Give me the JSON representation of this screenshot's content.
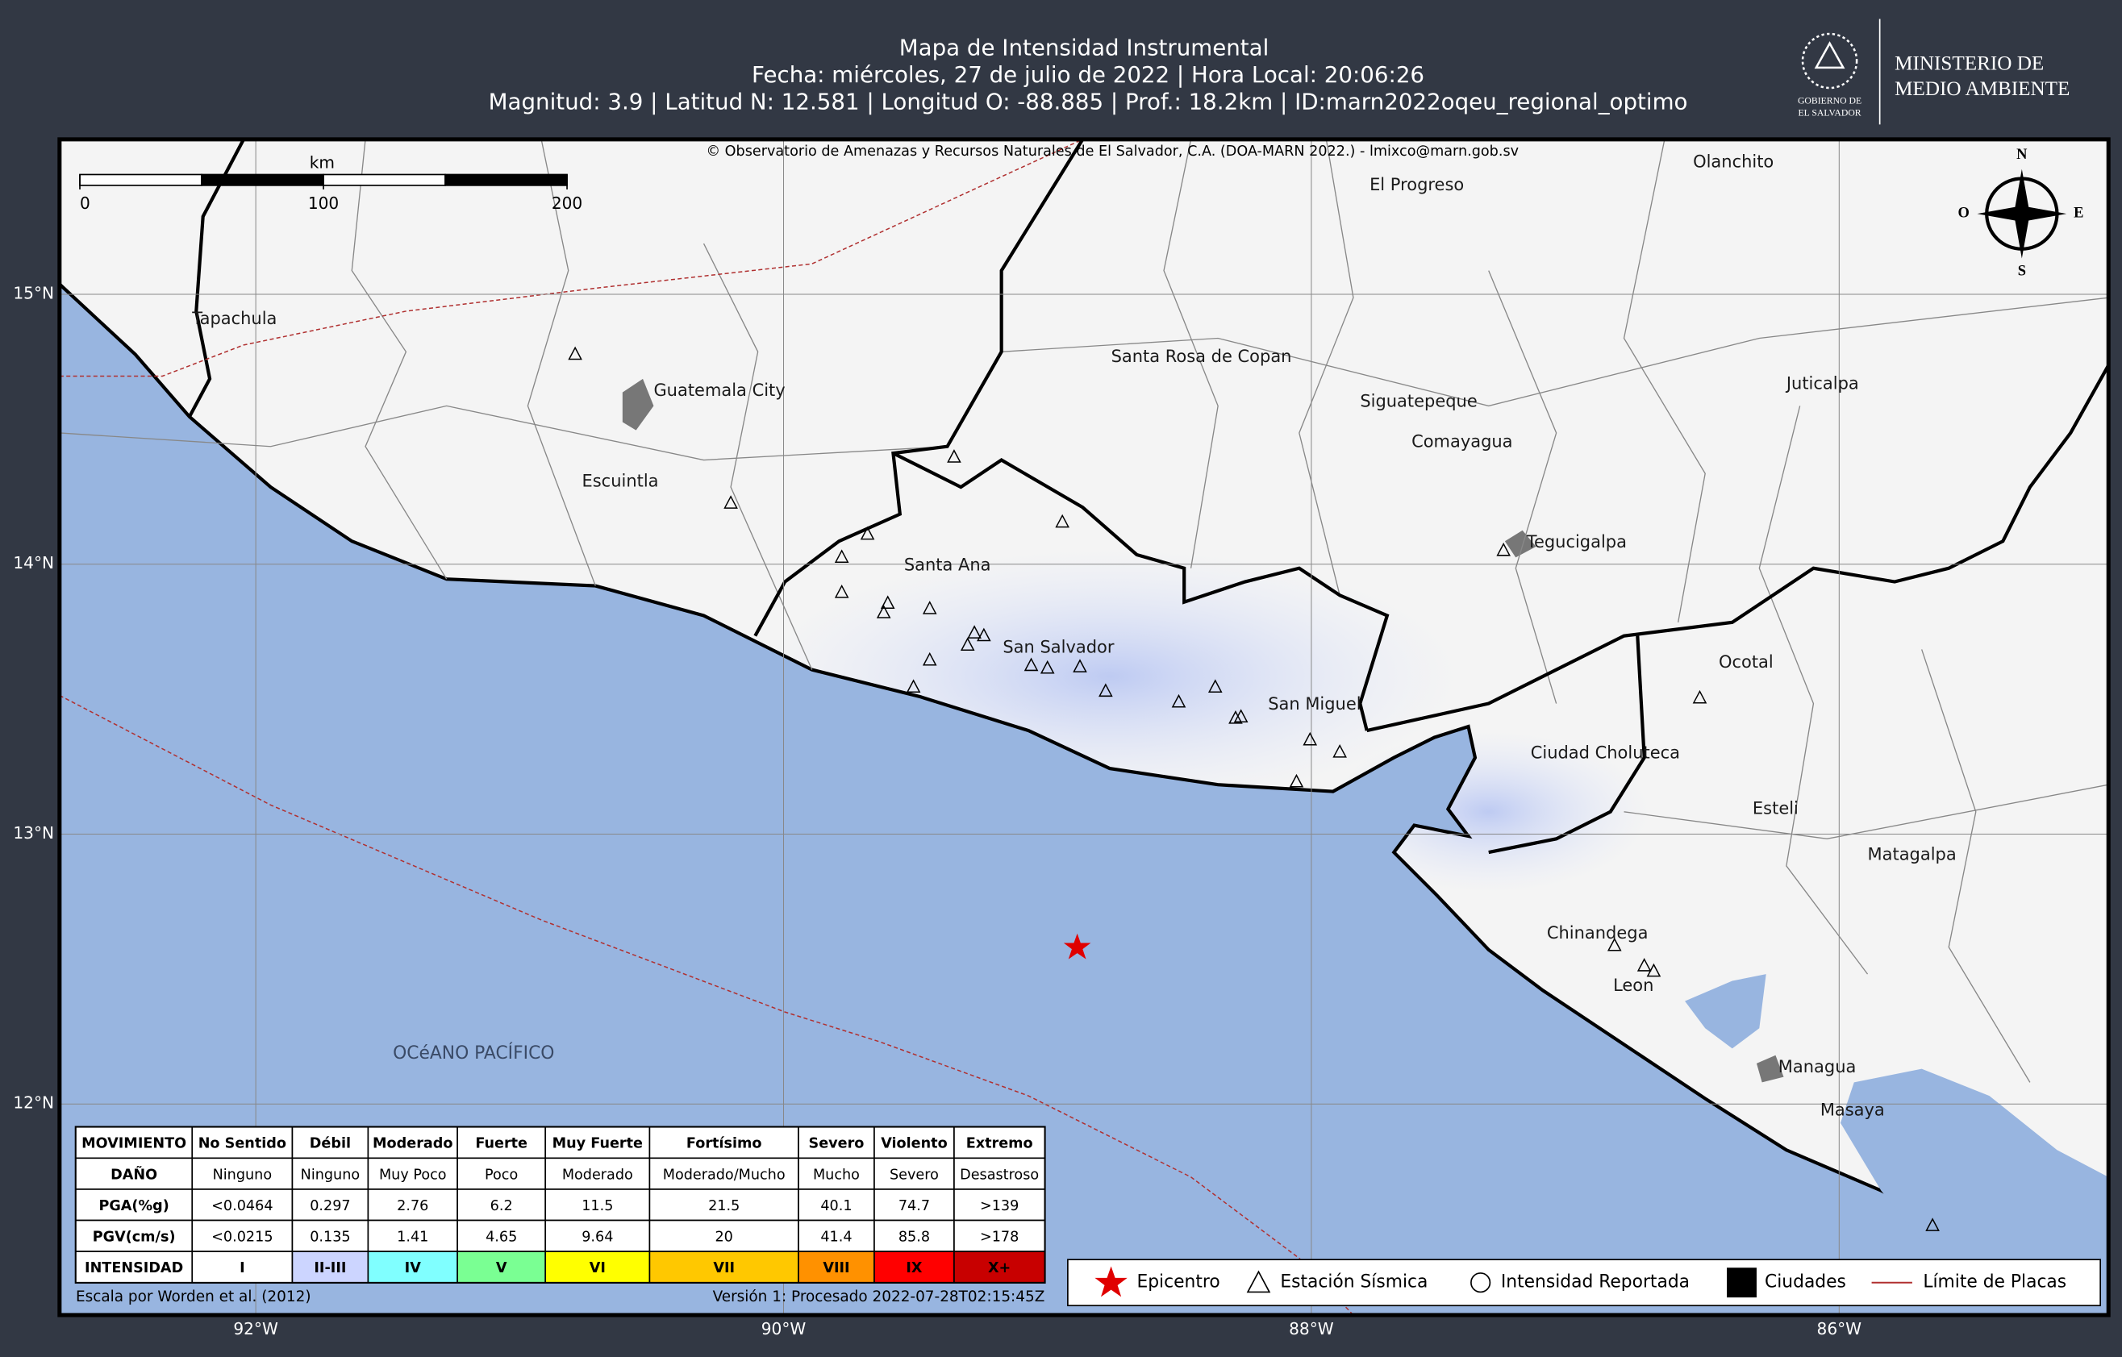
{
  "header": {
    "title": "Mapa de Intensidad Instrumental",
    "line2": "Fecha: miércoles, 27 de julio de 2022 | Hora Local: 20:06:26",
    "line3": "Magnitud: 3.9 | Latitud N: 12.581 | Longitud O: -88.885 | Prof.: 18.2km | ID:marn2022oqeu_regional_optimo"
  },
  "logo": {
    "caption": [
      "GOBIERNO DE",
      "EL SALVADOR"
    ],
    "ministry": [
      "MINISTERIO DE",
      "MEDIO AMBIENTE"
    ]
  },
  "map": {
    "copyright": "© Observatorio de Amenazas y Recursos Naturales de El Salvador, C.A. (DOA-MARN 2022.) - lmixco@marn.gob.sv",
    "scale_unit": "km",
    "scale_ticks": [
      0,
      100,
      200
    ],
    "compass": {
      "n": "N",
      "w": "O",
      "e": "E",
      "s": "S"
    },
    "xticks": [
      {
        "value": -92,
        "label": "92°W"
      },
      {
        "value": -90,
        "label": "90°W"
      },
      {
        "value": -88,
        "label": "88°W"
      },
      {
        "value": -86,
        "label": "86°W"
      }
    ],
    "yticks": [
      {
        "value": 15,
        "label": "15°N"
      },
      {
        "value": 14,
        "label": "14°N"
      },
      {
        "value": 13,
        "label": "13°N"
      },
      {
        "value": 12,
        "label": "12°N"
      }
    ],
    "places": [
      "Tapachula",
      "El Progreso",
      "Olanchito",
      "Guatemala City",
      "Santa Rosa de Copan",
      "Siguatepeque",
      "Comayagua",
      "Juticalpa",
      "Escuintla",
      "Santa Ana",
      "Tegucigalpa",
      "San Salvador",
      "Ocotal",
      "San Miguel",
      "Ciudad Choluteca",
      "Esteli",
      "Matagalpa",
      "Chinandega",
      "Leon",
      "Managua",
      "Masaya"
    ],
    "ocean_label": "OCéANO PACÍFICO"
  },
  "intensity_table": {
    "header": [
      "MOVIMIENTO",
      "No Sentido",
      "Débil",
      "Moderado",
      "Fuerte",
      "Muy Fuerte",
      "Fortísimo",
      "Severo",
      "Violento",
      "Extremo"
    ],
    "rows": [
      [
        "DAÑO",
        "Ninguno",
        "Ninguno",
        "Muy Poco",
        "Poco",
        "Moderado",
        "Moderado/Mucho",
        "Mucho",
        "Severo",
        "Desastroso"
      ],
      [
        "PGA(%g)",
        "<0.0464",
        "0.297",
        "2.76",
        "6.2",
        "11.5",
        "21.5",
        "40.1",
        "74.7",
        ">139"
      ],
      [
        "PGV(cm/s)",
        "<0.0215",
        "0.135",
        "1.41",
        "4.65",
        "9.64",
        "20",
        "41.4",
        "85.8",
        ">178"
      ],
      [
        "INTENSIDAD",
        "I",
        "II-III",
        "IV",
        "V",
        "VI",
        "VII",
        "VIII",
        "IX",
        "X+"
      ]
    ]
  },
  "legend": [
    "Epicentro",
    "Estación Sísmica",
    "Intensidad Reportada",
    "Ciudades",
    "Límite de Placas"
  ],
  "footer": {
    "left": "Escala por Worden et al. (2012)",
    "right": "Versión 1: Procesado 2022-07-28T02:15:45Z"
  }
}
